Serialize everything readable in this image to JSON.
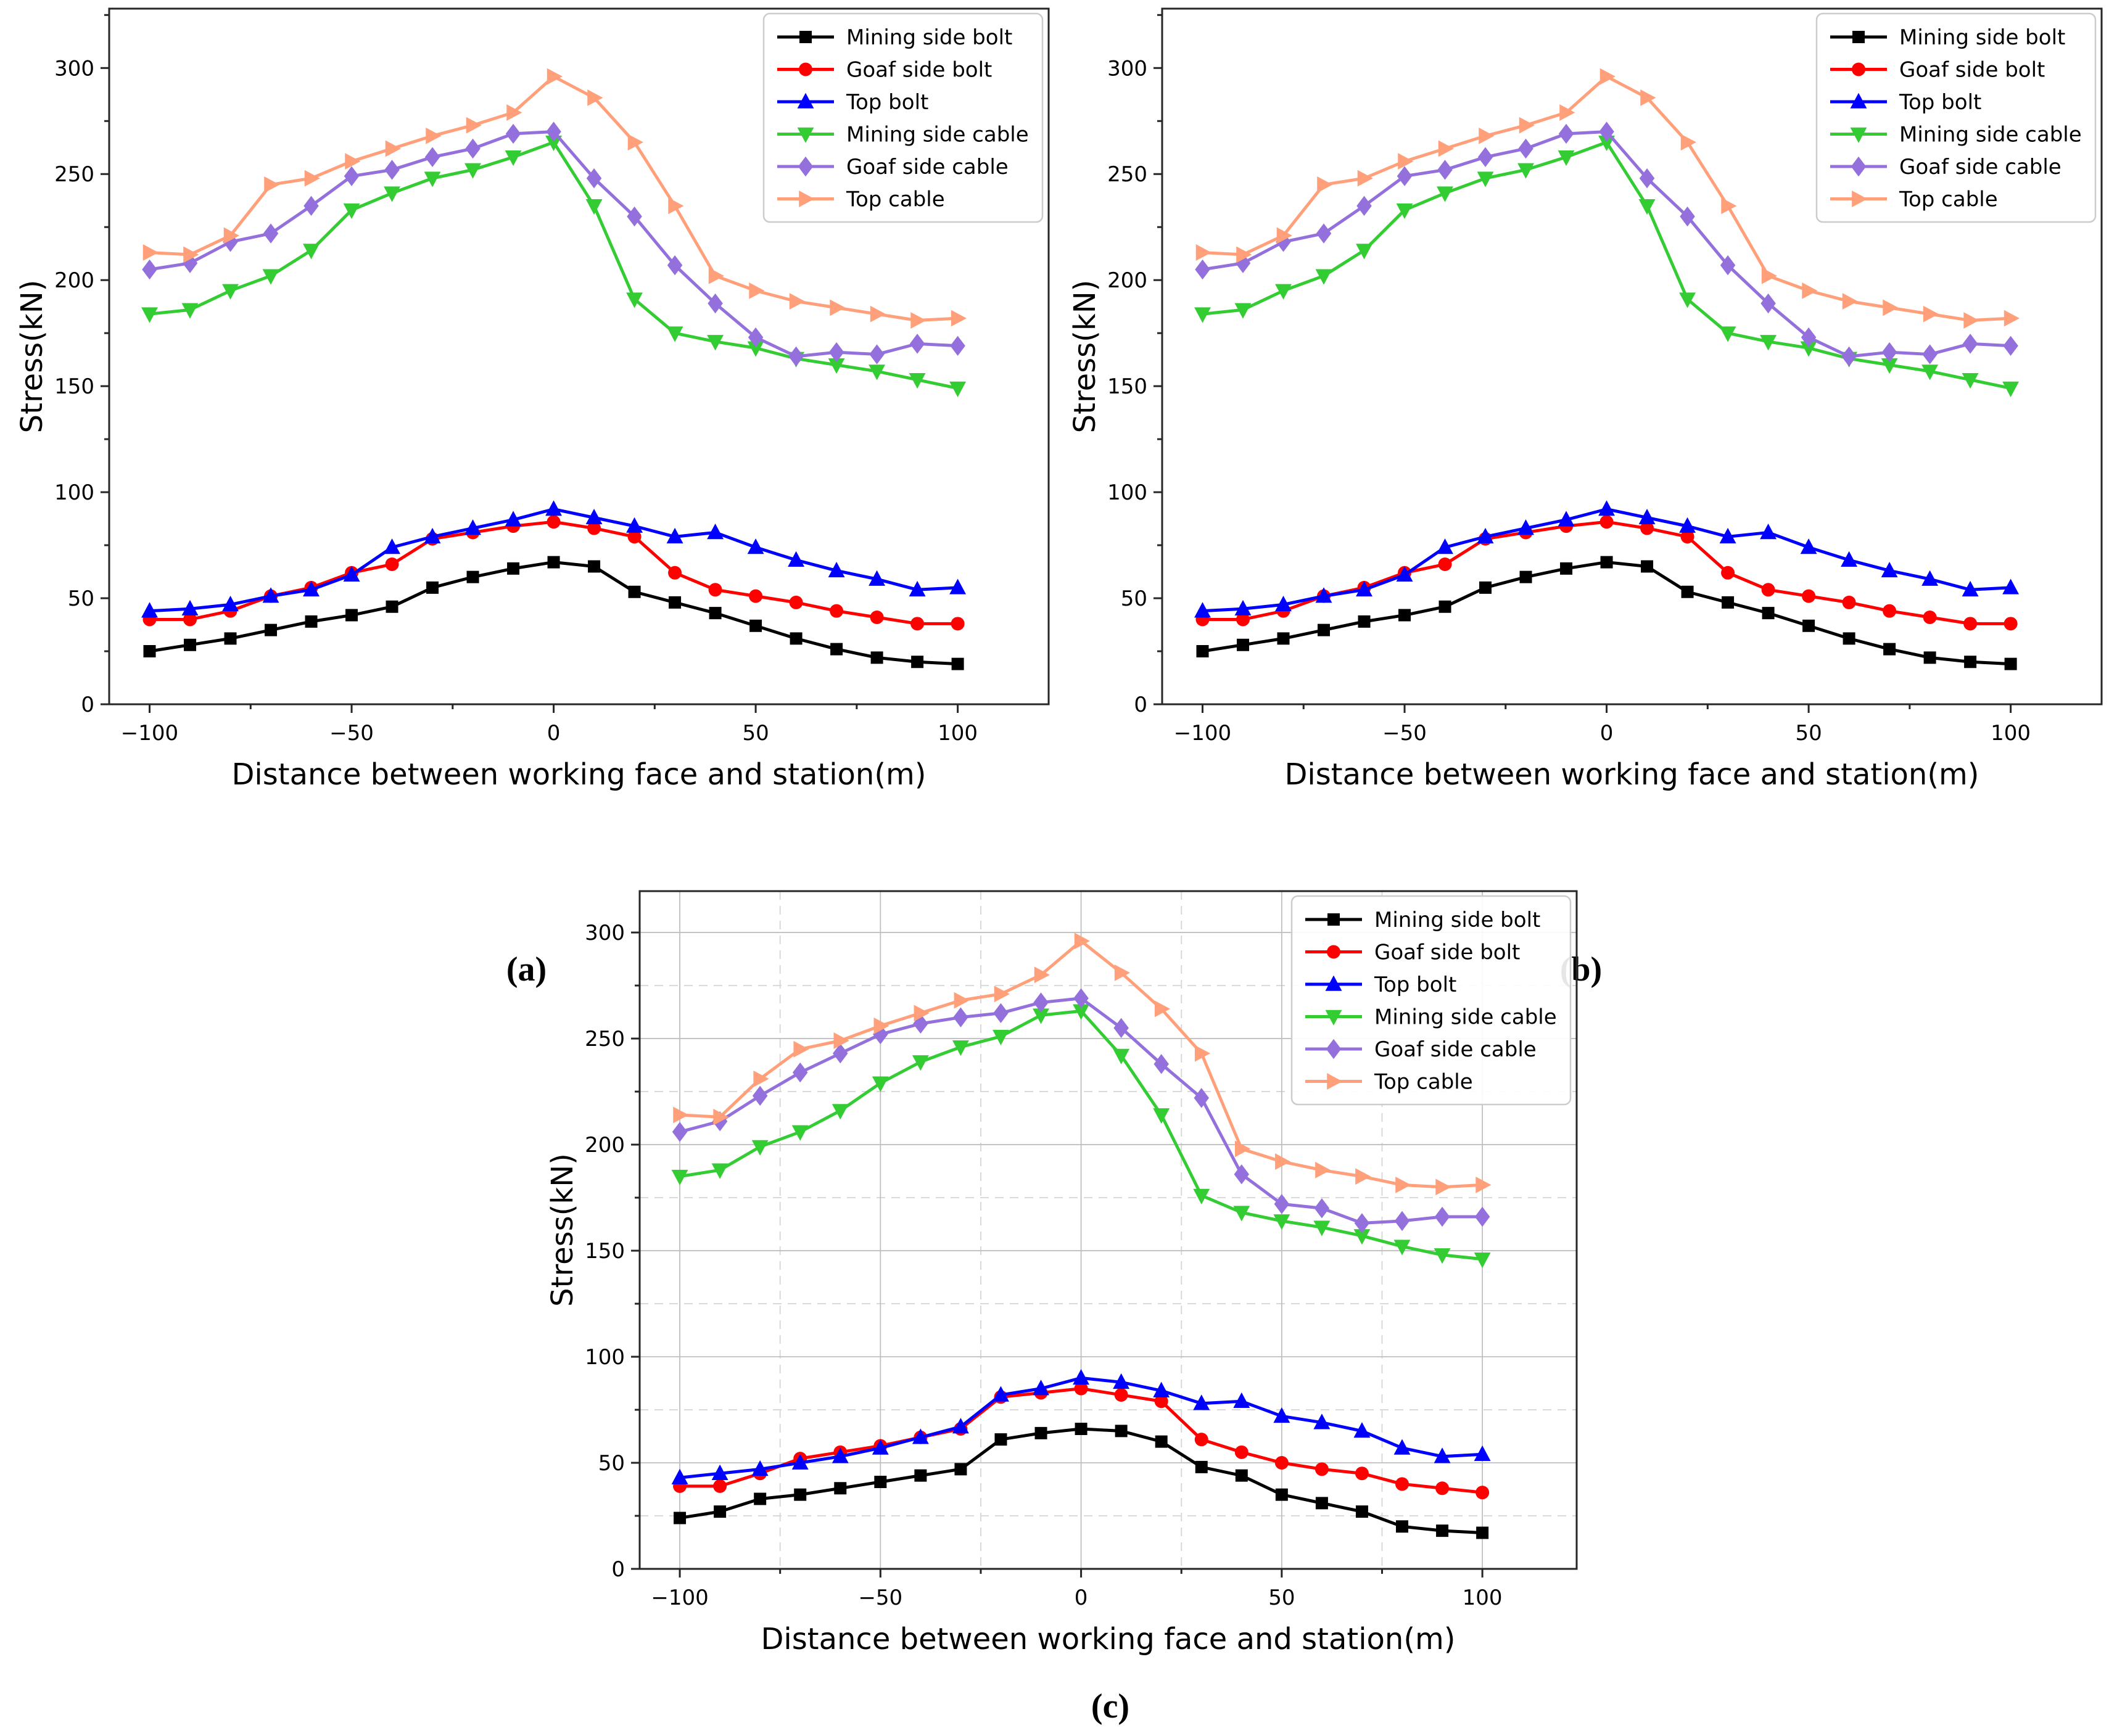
{
  "page": {
    "background": "#ffffff"
  },
  "captions": {
    "a": "(a)",
    "b": "(b)",
    "c": "(c)"
  },
  "series_meta": [
    {
      "key": "mining-side-bolt",
      "label": "Mining side bolt",
      "color": "#000000",
      "marker": "square"
    },
    {
      "key": "goaf-side-bolt",
      "label": "Goaf side bolt",
      "color": "#ff0000",
      "marker": "circle"
    },
    {
      "key": "top-bolt",
      "label": "Top bolt",
      "color": "#0000ff",
      "marker": "triangle-up"
    },
    {
      "key": "mining-side-cable",
      "label": "Mining side cable",
      "color": "#33cc33",
      "marker": "triangle-down"
    },
    {
      "key": "goaf-side-cable",
      "label": "Goaf side cable",
      "color": "#9370db",
      "marker": "diamond"
    },
    {
      "key": "top-cable",
      "label": "Top cable",
      "color": "#ffa07a",
      "marker": "triangle-right"
    }
  ],
  "chart_data": [
    {
      "id": "a",
      "type": "line",
      "title": "",
      "xlabel": "Distance between working face and station(m)",
      "ylabel": "Stress(kN)",
      "xlim": [
        -110,
        122.5
      ],
      "ylim": [
        0,
        328
      ],
      "xticks": [
        -100,
        -50,
        0,
        50,
        100
      ],
      "yticks": [
        0,
        50,
        100,
        150,
        200,
        250,
        300
      ],
      "grid": false,
      "legend_position": "upper right",
      "x": [
        -100,
        -90,
        -80,
        -70,
        -60,
        -50,
        -40,
        -30,
        -20,
        -10,
        0,
        10,
        20,
        30,
        40,
        50,
        60,
        70,
        80,
        90,
        100
      ],
      "series": [
        {
          "name": "Mining side bolt",
          "values": [
            25,
            28,
            31,
            35,
            39,
            42,
            46,
            55,
            60,
            64,
            67,
            65,
            53,
            48,
            43,
            37,
            31,
            26,
            22,
            20,
            19
          ]
        },
        {
          "name": "Goaf side bolt",
          "values": [
            40,
            40,
            44,
            51,
            55,
            62,
            66,
            78,
            81,
            84,
            86,
            83,
            79,
            62,
            54,
            51,
            48,
            44,
            41,
            38,
            38
          ]
        },
        {
          "name": "Top bolt",
          "values": [
            44,
            45,
            47,
            51,
            54,
            61,
            74,
            79,
            83,
            87,
            92,
            88,
            84,
            79,
            81,
            74,
            68,
            63,
            59,
            54,
            55
          ]
        },
        {
          "name": "Mining side cable",
          "values": [
            184,
            186,
            195,
            202,
            214,
            233,
            241,
            248,
            252,
            258,
            265,
            235,
            191,
            175,
            171,
            168,
            163,
            160,
            157,
            153,
            149
          ]
        },
        {
          "name": "Goaf side cable",
          "values": [
            205,
            208,
            218,
            222,
            235,
            249,
            252,
            258,
            262,
            269,
            270,
            248,
            230,
            207,
            189,
            173,
            164,
            166,
            165,
            170,
            169
          ]
        },
        {
          "name": "Top cable",
          "values": [
            213,
            212,
            221,
            245,
            248,
            256,
            262,
            268,
            273,
            279,
            296,
            286,
            265,
            235,
            202,
            195,
            190,
            187,
            184,
            181,
            182
          ]
        }
      ]
    },
    {
      "id": "b",
      "type": "line",
      "title": "",
      "xlabel": "Distance between working face and station(m)",
      "ylabel": "Stress(kN)",
      "xlim": [
        -110,
        122.5
      ],
      "ylim": [
        0,
        328
      ],
      "xticks": [
        -100,
        -50,
        0,
        50,
        100
      ],
      "yticks": [
        0,
        50,
        100,
        150,
        200,
        250,
        300
      ],
      "grid": false,
      "legend_position": "upper right",
      "x": [
        -100,
        -90,
        -80,
        -70,
        -60,
        -50,
        -40,
        -30,
        -20,
        -10,
        0,
        10,
        20,
        30,
        40,
        50,
        60,
        70,
        80,
        90,
        100
      ],
      "series": [
        {
          "name": "Mining side bolt",
          "values": [
            25,
            28,
            31,
            35,
            39,
            42,
            46,
            55,
            60,
            64,
            67,
            65,
            53,
            48,
            43,
            37,
            31,
            26,
            22,
            20,
            19
          ]
        },
        {
          "name": "Goaf side bolt",
          "values": [
            40,
            40,
            44,
            51,
            55,
            62,
            66,
            78,
            81,
            84,
            86,
            83,
            79,
            62,
            54,
            51,
            48,
            44,
            41,
            38,
            38
          ]
        },
        {
          "name": "Top bolt",
          "values": [
            44,
            45,
            47,
            51,
            54,
            61,
            74,
            79,
            83,
            87,
            92,
            88,
            84,
            79,
            81,
            74,
            68,
            63,
            59,
            54,
            55
          ]
        },
        {
          "name": "Mining side cable",
          "values": [
            184,
            186,
            195,
            202,
            214,
            233,
            241,
            248,
            252,
            258,
            265,
            235,
            191,
            175,
            171,
            168,
            163,
            160,
            157,
            153,
            149
          ]
        },
        {
          "name": "Goaf side cable",
          "values": [
            205,
            208,
            218,
            222,
            235,
            249,
            252,
            258,
            262,
            269,
            270,
            248,
            230,
            207,
            189,
            173,
            164,
            166,
            165,
            170,
            169
          ]
        },
        {
          "name": "Top cable",
          "values": [
            213,
            212,
            221,
            245,
            248,
            256,
            262,
            268,
            273,
            279,
            296,
            286,
            265,
            235,
            202,
            195,
            190,
            187,
            184,
            181,
            182
          ]
        }
      ]
    },
    {
      "id": "c",
      "type": "line",
      "title": "",
      "xlabel": "Distance between working face and station(m)",
      "ylabel": "Stress(kN)",
      "xlim": [
        -110,
        123.5
      ],
      "ylim": [
        0,
        319.5
      ],
      "xticks": [
        -100,
        -50,
        0,
        50,
        100
      ],
      "yticks": [
        0,
        50,
        100,
        150,
        200,
        250,
        300
      ],
      "grid": true,
      "legend_position": "upper right",
      "x": [
        -100,
        -90,
        -80,
        -70,
        -60,
        -50,
        -40,
        -30,
        -20,
        -10,
        0,
        10,
        20,
        30,
        40,
        50,
        60,
        70,
        80,
        90,
        100
      ],
      "series": [
        {
          "name": "Mining side bolt",
          "values": [
            24,
            27,
            33,
            35,
            38,
            41,
            44,
            47,
            61,
            64,
            66,
            65,
            60,
            48,
            44,
            35,
            31,
            27,
            20,
            18,
            17
          ]
        },
        {
          "name": "Goaf side bolt",
          "values": [
            39,
            39,
            45,
            52,
            55,
            58,
            62,
            66,
            81,
            83,
            85,
            82,
            79,
            61,
            55,
            50,
            47,
            45,
            40,
            38,
            36
          ]
        },
        {
          "name": "Top bolt",
          "values": [
            43,
            45,
            47,
            50,
            53,
            57,
            62,
            67,
            82,
            85,
            90,
            88,
            84,
            78,
            79,
            72,
            69,
            65,
            57,
            53,
            54
          ]
        },
        {
          "name": "Mining side cable",
          "values": [
            185,
            188,
            199,
            206,
            216,
            229,
            239,
            246,
            251,
            261,
            263,
            242,
            214,
            176,
            168,
            164,
            161,
            157,
            152,
            148,
            146
          ]
        },
        {
          "name": "Goaf side cable",
          "values": [
            206,
            211,
            223,
            234,
            243,
            252,
            257,
            260,
            262,
            267,
            269,
            255,
            238,
            222,
            186,
            172,
            170,
            163,
            164,
            166,
            166
          ]
        },
        {
          "name": "Top cable",
          "values": [
            214,
            213,
            231,
            245,
            249,
            256,
            262,
            268,
            271,
            280,
            296,
            281,
            264,
            243,
            198,
            192,
            188,
            185,
            181,
            180,
            181
          ]
        }
      ]
    }
  ]
}
